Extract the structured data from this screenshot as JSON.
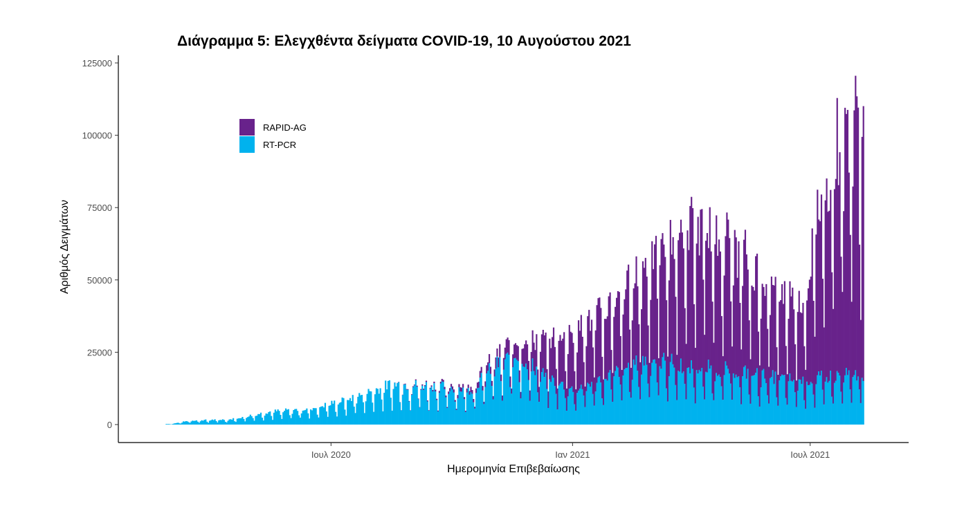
{
  "chart_data": {
    "type": "bar",
    "stacked": true,
    "title": "Διάγραμμα 5: Ελεγχθέντα δείγματα COVID-19, 10 Αυγούστου 2021",
    "xlabel": "Ημερομηνία Επιβεβαίωσης",
    "ylabel": "Αριθμός Δειγμάτων",
    "ylim": [
      0,
      125000
    ],
    "yticks": [
      0,
      25000,
      50000,
      75000,
      100000,
      125000
    ],
    "ytick_labels": [
      "0",
      "25000",
      "50000",
      "75000",
      "100000",
      "125000"
    ],
    "x_range": [
      "2020-02-26",
      "2021-08-10"
    ],
    "x_axis_limits": [
      "2020-01-21",
      "2021-09-14"
    ],
    "xticks": [
      "2020-07-01",
      "2021-01-01",
      "2021-07-01"
    ],
    "xtick_labels": [
      "Ιουλ 2020",
      "Ιαν 2021",
      "Ιουλ 2021"
    ],
    "grid": false,
    "legend": "top-left",
    "series": [
      {
        "name": "RAPID-AG",
        "color": "#68228b"
      },
      {
        "name": "RT-PCR",
        "color": "#00b2ee"
      }
    ],
    "weekly_profile": [
      {
        "date": "2020-03-01",
        "rtpcr": 200,
        "rapid": 0
      },
      {
        "date": "2020-03-15",
        "rtpcr": 1400,
        "rapid": 0
      },
      {
        "date": "2020-04-15",
        "rtpcr": 1800,
        "rapid": 0
      },
      {
        "date": "2020-05-15",
        "rtpcr": 4500,
        "rapid": 0
      },
      {
        "date": "2020-06-15",
        "rtpcr": 5500,
        "rapid": 0
      },
      {
        "date": "2020-07-15",
        "rtpcr": 9000,
        "rapid": 0
      },
      {
        "date": "2020-08-15",
        "rtpcr": 14000,
        "rapid": 0
      },
      {
        "date": "2020-09-15",
        "rtpcr": 13500,
        "rapid": 500
      },
      {
        "date": "2020-10-15",
        "rtpcr": 12000,
        "rapid": 1500
      },
      {
        "date": "2020-11-01",
        "rtpcr": 20000,
        "rapid": 3000
      },
      {
        "date": "2020-11-20",
        "rtpcr": 24500,
        "rapid": 6000
      },
      {
        "date": "2020-12-10",
        "rtpcr": 17000,
        "rapid": 12500
      },
      {
        "date": "2021-01-01",
        "rtpcr": 12000,
        "rapid": 20000
      },
      {
        "date": "2021-02-01",
        "rtpcr": 18000,
        "rapid": 25000
      },
      {
        "date": "2021-03-01",
        "rtpcr": 23000,
        "rapid": 35000
      },
      {
        "date": "2021-04-01",
        "rtpcr": 20000,
        "rapid": 50000
      },
      {
        "date": "2021-05-01",
        "rtpcr": 19000,
        "rapid": 45000
      },
      {
        "date": "2021-06-01",
        "rtpcr": 16500,
        "rapid": 30000
      },
      {
        "date": "2021-06-25",
        "rtpcr": 15000,
        "rapid": 28000
      },
      {
        "date": "2021-07-05",
        "rtpcr": 16000,
        "rapid": 55000
      },
      {
        "date": "2021-07-20",
        "rtpcr": 17000,
        "rapid": 80000
      },
      {
        "date": "2021-08-10",
        "rtpcr": 17500,
        "rapid": 90000
      }
    ],
    "weekend_dip": 0.4
  }
}
